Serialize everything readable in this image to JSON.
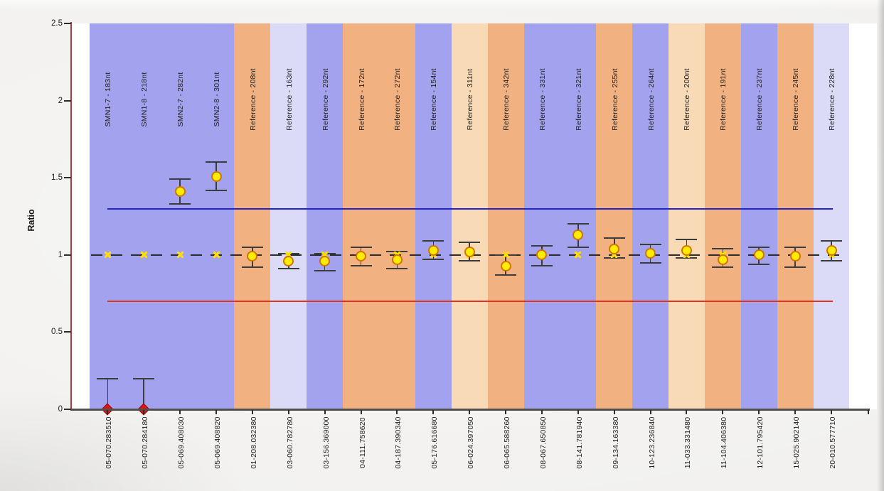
{
  "chart_data": {
    "type": "scatter",
    "title": "",
    "ylabel": "Ratio",
    "ylim": [
      0,
      2.5
    ],
    "yticks": [
      0,
      0.5,
      1,
      1.5,
      2,
      2.5
    ],
    "grid": false,
    "legend": "none",
    "upper_threshold_line": {
      "value": 1.3,
      "color": "#2424cc"
    },
    "lower_threshold_line": {
      "value": 0.7,
      "color": "#e23222"
    },
    "reference_ratio_line": {
      "value": 1.0,
      "style": "dashed",
      "color": "#2b2b2b"
    },
    "band_colors": {
      "blue": "#a2a2ee",
      "orange": "#f2b181",
      "cream": "#f8dab6",
      "lavender": "#dbdbf8"
    },
    "marker_colors": {
      "sample_fill": "#ffec00",
      "sample_stroke": "#cf7500",
      "deleted_fill": "#e01414",
      "deleted_stroke": "#8f0606",
      "reference_x": "#ffdf00",
      "error_bar": "#3c3c3c"
    },
    "points": [
      {
        "probe": "SMN1-7 - 183nt",
        "x_label": "05-070.283510",
        "band": "blue",
        "value": 0.0,
        "err_low": 0.0,
        "err_high": 0.2,
        "marker": "deleted",
        "reference": 1.0
      },
      {
        "probe": "SMN1-8 - 218nt",
        "x_label": "05-070.284180",
        "band": "blue",
        "value": 0.0,
        "err_low": 0.0,
        "err_high": 0.2,
        "marker": "deleted",
        "reference": 1.0
      },
      {
        "probe": "SMN2-7 - 282nt",
        "x_label": "05-069.408030",
        "band": "blue",
        "value": 1.41,
        "err_low": 1.33,
        "err_high": 1.49,
        "marker": "sample",
        "reference": 1.0
      },
      {
        "probe": "SMN2-8 - 301nt",
        "x_label": "05-069.408820",
        "band": "blue",
        "value": 1.51,
        "err_low": 1.42,
        "err_high": 1.6,
        "marker": "sample",
        "reference": 1.0
      },
      {
        "probe": "Reference - 208nt",
        "x_label": "01-208.032380",
        "band": "orange",
        "value": 0.99,
        "err_low": 0.92,
        "err_high": 1.05,
        "marker": "sample",
        "reference": 1.0
      },
      {
        "probe": "Reference - 163nt",
        "x_label": "03-060.782780",
        "band": "lavender",
        "value": 0.96,
        "err_low": 0.91,
        "err_high": 1.01,
        "marker": "sample",
        "reference": 1.0
      },
      {
        "probe": "Reference - 292nt",
        "x_label": "03-156.369000",
        "band": "blue",
        "value": 0.96,
        "err_low": 0.9,
        "err_high": 1.01,
        "marker": "sample",
        "reference": 1.0
      },
      {
        "probe": "Reference - 172nt",
        "x_label": "04-111.758620",
        "band": "orange",
        "value": 0.99,
        "err_low": 0.93,
        "err_high": 1.05,
        "marker": "sample",
        "reference": 1.0
      },
      {
        "probe": "Reference - 272nt",
        "x_label": "04-187.390340",
        "band": "orange",
        "value": 0.97,
        "err_low": 0.91,
        "err_high": 1.02,
        "marker": "sample",
        "reference": 1.0
      },
      {
        "probe": "Reference - 154nt",
        "x_label": "05-176.616680",
        "band": "blue",
        "value": 1.03,
        "err_low": 0.97,
        "err_high": 1.09,
        "marker": "sample",
        "reference": 1.0
      },
      {
        "probe": "Reference - 311nt",
        "x_label": "06-024.397050",
        "band": "cream",
        "value": 1.02,
        "err_low": 0.96,
        "err_high": 1.08,
        "marker": "sample",
        "reference": 1.0
      },
      {
        "probe": "Reference - 342nt",
        "x_label": "06-065.588260",
        "band": "orange",
        "value": 0.93,
        "err_low": 0.87,
        "err_high": 1.0,
        "marker": "sample",
        "reference": 1.0
      },
      {
        "probe": "Reference - 331nt",
        "x_label": "08-067.650850",
        "band": "blue",
        "value": 1.0,
        "err_low": 0.93,
        "err_high": 1.06,
        "marker": "sample",
        "reference": 1.0
      },
      {
        "probe": "Reference - 321nt",
        "x_label": "08-141.781940",
        "band": "blue",
        "value": 1.13,
        "err_low": 1.05,
        "err_high": 1.2,
        "marker": "sample",
        "reference": 1.0
      },
      {
        "probe": "Reference - 255nt",
        "x_label": "09-134.163380",
        "band": "orange",
        "value": 1.04,
        "err_low": 0.98,
        "err_high": 1.11,
        "marker": "sample",
        "reference": 1.0
      },
      {
        "probe": "Reference - 264nt",
        "x_label": "10-123.236840",
        "band": "blue",
        "value": 1.01,
        "err_low": 0.95,
        "err_high": 1.07,
        "marker": "sample",
        "reference": 1.0
      },
      {
        "probe": "Reference - 200nt",
        "x_label": "11-033.331480",
        "band": "cream",
        "value": 1.03,
        "err_low": 0.98,
        "err_high": 1.1,
        "marker": "sample",
        "reference": 1.0
      },
      {
        "probe": "Reference - 191nt",
        "x_label": "11-104.406380",
        "band": "orange",
        "value": 0.97,
        "err_low": 0.92,
        "err_high": 1.04,
        "marker": "sample",
        "reference": 1.0
      },
      {
        "probe": "Reference - 237nt",
        "x_label": "12-101.795420",
        "band": "blue",
        "value": 1.0,
        "err_low": 0.94,
        "err_high": 1.05,
        "marker": "sample",
        "reference": 1.0
      },
      {
        "probe": "Reference - 245nt",
        "x_label": "15-025.902140",
        "band": "orange",
        "value": 0.99,
        "err_low": 0.92,
        "err_high": 1.05,
        "marker": "sample",
        "reference": 1.0
      },
      {
        "probe": "Reference - 228nt",
        "x_label": "20-010.577710",
        "band": "lavender",
        "value": 1.03,
        "err_low": 0.96,
        "err_high": 1.09,
        "marker": "sample",
        "reference": 1.0
      }
    ]
  }
}
